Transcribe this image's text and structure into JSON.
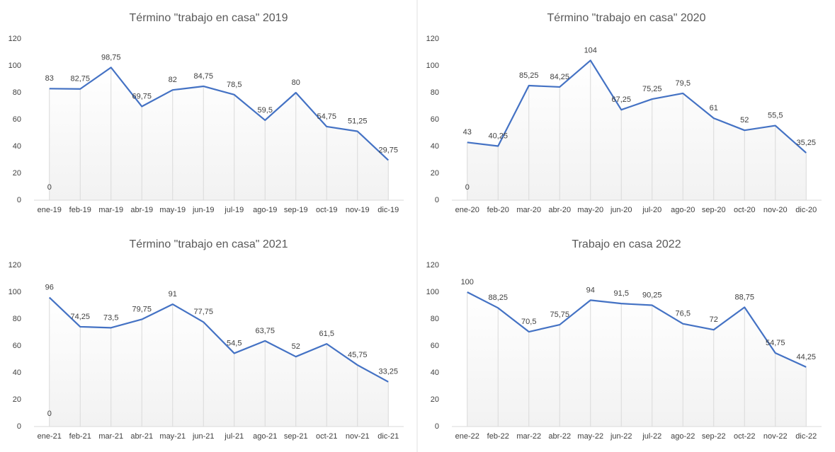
{
  "chart_data": [
    {
      "type": "line",
      "title": "Término \"trabajo en casa\" 2019",
      "annotation": "0",
      "categories": [
        "ene-19",
        "feb-19",
        "mar-19",
        "abr-19",
        "may-19",
        "jun-19",
        "jul-19",
        "ago-19",
        "sep-19",
        "oct-19",
        "nov-19",
        "dic-19"
      ],
      "values": [
        83,
        82.75,
        98.75,
        69.75,
        82,
        84.75,
        78.5,
        59.5,
        80,
        54.75,
        51.25,
        29.75
      ],
      "value_labels": [
        "83",
        "82,75",
        "98,75",
        "69,75",
        "82",
        "84,75",
        "78,5",
        "59,5",
        "80",
        "54,75",
        "51,25",
        "29,75"
      ],
      "color": "#4472c4",
      "ylim": [
        0,
        120
      ],
      "yticks": [
        0,
        20,
        40,
        60,
        80,
        100,
        120
      ]
    },
    {
      "type": "line",
      "title": "Término \"trabajo en casa\" 2020",
      "annotation": "0",
      "categories": [
        "ene-20",
        "feb-20",
        "mar-20",
        "abr-20",
        "may-20",
        "jun-20",
        "jul-20",
        "ago-20",
        "sep-20",
        "oct-20",
        "nov-20",
        "dic-20"
      ],
      "values": [
        43,
        40.25,
        85.25,
        84.25,
        104,
        67.25,
        75.25,
        79.5,
        61,
        52,
        55.5,
        35.25
      ],
      "value_labels": [
        "43",
        "40,25",
        "85,25",
        "84,25",
        "104",
        "67,25",
        "75,25",
        "79,5",
        "61",
        "52",
        "55,5",
        "35,25"
      ],
      "color": "#4472c4",
      "ylim": [
        0,
        120
      ],
      "yticks": [
        0,
        20,
        40,
        60,
        80,
        100,
        120
      ]
    },
    {
      "type": "line",
      "title": "Término \"trabajo en casa\" 2021",
      "annotation": "0",
      "categories": [
        "ene-21",
        "feb-21",
        "mar-21",
        "abr-21",
        "may-21",
        "jun-21",
        "jul-21",
        "ago-21",
        "sep-21",
        "oct-21",
        "nov-21",
        "dic-21"
      ],
      "values": [
        96,
        74.25,
        73.5,
        79.75,
        91,
        77.75,
        54.5,
        63.75,
        52,
        61.5,
        45.75,
        33.25
      ],
      "value_labels": [
        "96",
        "74,25",
        "73,5",
        "79,75",
        "91",
        "77,75",
        "54,5",
        "63,75",
        "52",
        "61,5",
        "45,75",
        "33,25"
      ],
      "color": "#4472c4",
      "ylim": [
        0,
        120
      ],
      "yticks": [
        0,
        20,
        40,
        60,
        80,
        100,
        120
      ]
    },
    {
      "type": "line",
      "title": "Trabajo en casa 2022",
      "categories": [
        "ene-22",
        "feb-22",
        "mar-22",
        "abr-22",
        "may-22",
        "jun-22",
        "jul-22",
        "ago-22",
        "sep-22",
        "oct-22",
        "nov-22",
        "dic-22"
      ],
      "values": [
        100,
        88.25,
        70.5,
        75.75,
        94,
        91.5,
        90.25,
        76.5,
        72,
        88.75,
        54.75,
        44.25
      ],
      "value_labels": [
        "100",
        "88,25",
        "70,5",
        "75,75",
        "94",
        "91,5",
        "90,25",
        "76,5",
        "72",
        "88,75",
        "54,75",
        "44,25"
      ],
      "color": "#4472c4",
      "ylim": [
        0,
        120
      ],
      "yticks": [
        0,
        20,
        40,
        60,
        80,
        100,
        120
      ]
    }
  ]
}
